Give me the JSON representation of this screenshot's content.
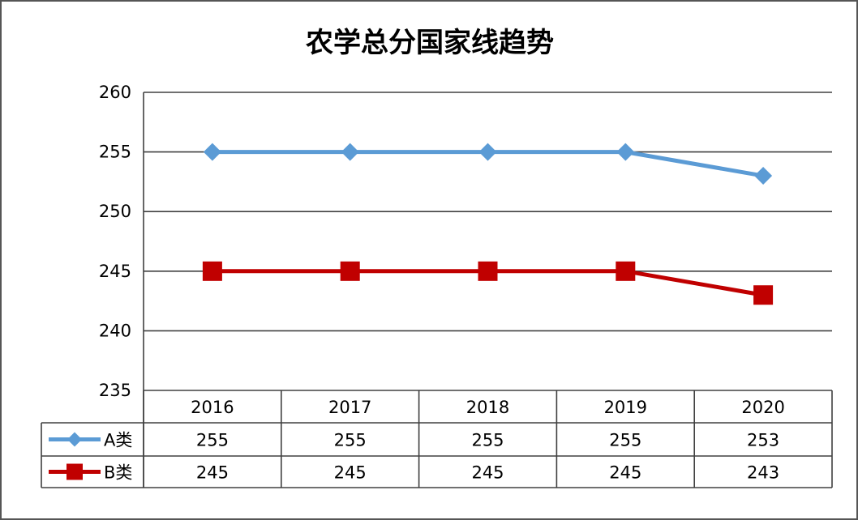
{
  "chart_data": {
    "type": "line",
    "title": "农学总分国家线趋势",
    "categories": [
      "2016",
      "2017",
      "2018",
      "2019",
      "2020"
    ],
    "ylim": [
      235,
      260
    ],
    "yticks": [
      260,
      255,
      250,
      245,
      240,
      235
    ],
    "grid": true,
    "legend_placement": "data-table-rows",
    "series": [
      {
        "name": "A类",
        "values": [
          255,
          255,
          255,
          255,
          253
        ],
        "color": "#5b9bd5",
        "marker": "diamond"
      },
      {
        "name": "B类",
        "values": [
          245,
          245,
          245,
          245,
          243
        ],
        "color": "#c00000",
        "marker": "square"
      }
    ]
  }
}
